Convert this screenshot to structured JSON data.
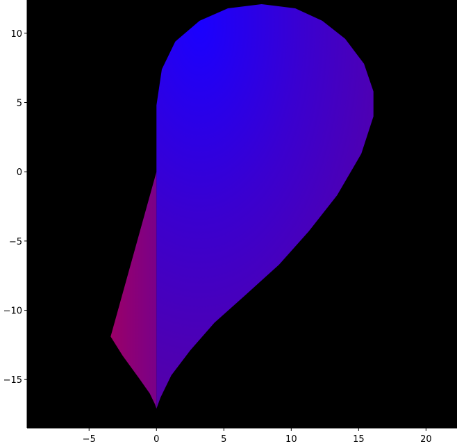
{
  "chart_data": {
    "type": "area",
    "title": "",
    "xlabel": "",
    "ylabel": "",
    "xlim": [
      -9.6,
      22.3
    ],
    "ylim": [
      -18.5,
      12.4
    ],
    "grid": false,
    "background_color": "#000000",
    "x_ticks": [
      -5,
      0,
      5,
      10,
      15,
      20
    ],
    "y_ticks": [
      -15,
      -10,
      -5,
      0,
      5,
      10
    ],
    "x_tick_labels": [
      "−5",
      "0",
      "5",
      "10",
      "15",
      "20"
    ],
    "y_tick_labels": [
      "−15",
      "−10",
      "−5",
      "0",
      "5",
      "10"
    ],
    "colors": {
      "top": "#1a00ff",
      "middle": "#4b00b0",
      "bottom_left": "#9a0068"
    },
    "series": [
      {
        "fill_color": "#9a0068",
        "points": [
          [
            0,
            0
          ],
          [
            -3.4,
            -11.9
          ],
          [
            -2.5,
            -13.3
          ],
          [
            -1.3,
            -14.9
          ],
          [
            -0.5,
            -16.0
          ],
          [
            -0.1,
            -16.8
          ],
          [
            0,
            -17.1
          ],
          [
            0,
            0
          ]
        ]
      },
      {
        "fill_color": "#4b00b0",
        "points": [
          [
            0,
            0
          ],
          [
            0,
            -17.1
          ],
          [
            0.3,
            -16.3
          ],
          [
            1.1,
            -14.7
          ],
          [
            2.5,
            -12.9
          ],
          [
            4.3,
            -10.9
          ],
          [
            6.6,
            -8.9
          ],
          [
            9.1,
            -6.7
          ],
          [
            11.3,
            -4.3
          ],
          [
            13.4,
            -1.7
          ],
          [
            15.2,
            1.3
          ],
          [
            16.1,
            4.0
          ],
          [
            16.1,
            5.8
          ],
          [
            15.4,
            7.8
          ],
          [
            14.0,
            9.6
          ],
          [
            12.3,
            10.9
          ],
          [
            10.3,
            11.8
          ],
          [
            7.8,
            12.1
          ],
          [
            5.3,
            11.8
          ],
          [
            3.2,
            10.9
          ],
          [
            1.4,
            9.4
          ],
          [
            0.4,
            7.4
          ],
          [
            0,
            4.8
          ],
          [
            0,
            0
          ]
        ]
      }
    ]
  }
}
